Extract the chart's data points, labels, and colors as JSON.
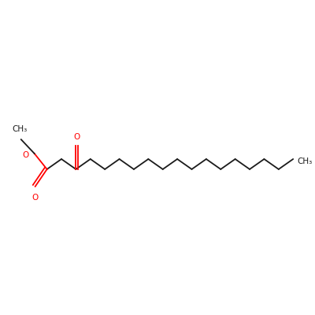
{
  "background_color": "#ffffff",
  "bond_color": "#1a1a1a",
  "oxygen_color": "#ff0000",
  "line_width": 1.3,
  "font_size": 7.5,
  "figsize": [
    4.0,
    4.0
  ],
  "dpi": 100,
  "ethyl_ch3_label": "CH₃",
  "ketone_o_label": "O",
  "ester_o_label": "O",
  "ester_co_label": "O",
  "right_ch3_label": "CH₃"
}
